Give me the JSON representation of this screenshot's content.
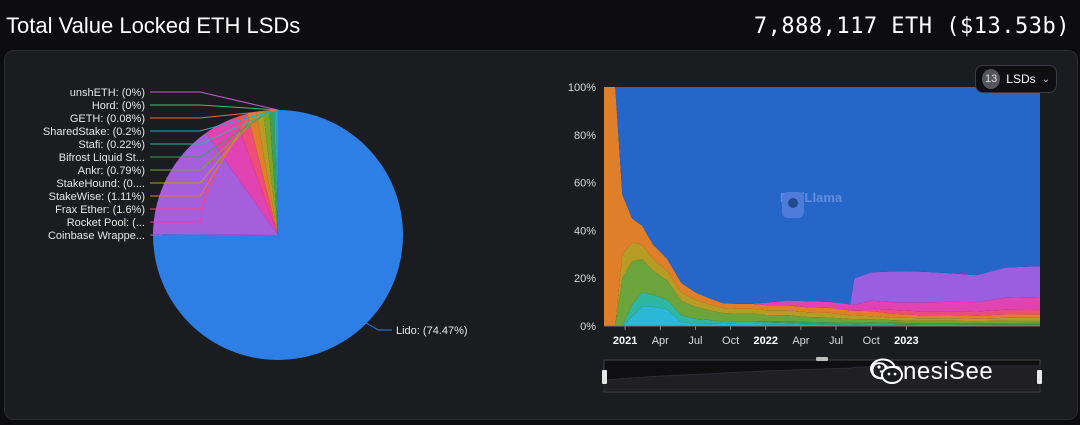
{
  "header": {
    "title": "Total Value Locked ETH LSDs",
    "total": "7,888,117 ETH ($13.53b)"
  },
  "lsd_selector": {
    "count": "13",
    "label": "LSDs"
  },
  "watermark": {
    "defillama": "DefiLlama",
    "wechat_name": "GenesiSee"
  },
  "colors": {
    "background": "#0d0d0f",
    "panel": "#1b1c20",
    "lido": "#2678e0"
  },
  "chart_data": [
    {
      "type": "pie",
      "title": "",
      "slices": [
        {
          "label": "Lido: (74.47%)",
          "value": 74.47,
          "color": "#2d7fe6"
        },
        {
          "label": "Coinbase Wrappe...",
          "value": 15.0,
          "color": "#a55edc"
        },
        {
          "label": "Rocket Pool: (...",
          "value": 4.2,
          "color": "#e243b3"
        },
        {
          "label": "Frax Ether: (1.6%)",
          "value": 1.6,
          "color": "#ef4c79"
        },
        {
          "label": "StakeWise: (1.11%)",
          "value": 1.11,
          "color": "#e07f2a"
        },
        {
          "label": "StakeHound: (0....",
          "value": 0.9,
          "color": "#b69b24"
        },
        {
          "label": "Ankr: (0.79%)",
          "value": 0.79,
          "color": "#7aa52d"
        },
        {
          "label": "Bifrost Liquid St...",
          "value": 0.6,
          "color": "#3c9e59"
        },
        {
          "label": "Stafi: (0.22%)",
          "value": 0.22,
          "color": "#2fb6a0"
        },
        {
          "label": "SharedStake: (0.2%)",
          "value": 0.2,
          "color": "#23a8cf"
        },
        {
          "label": "GETH: (0.08%)",
          "value": 0.08,
          "color": "#e86a3b"
        },
        {
          "label": "Hord: (0%)",
          "value": 0.0,
          "color": "#38c56b"
        },
        {
          "label": "unshETH: (0%)",
          "value": 0.0,
          "color": "#c85bd6"
        }
      ]
    },
    {
      "type": "area",
      "stacked": true,
      "percent": true,
      "ylabel": "",
      "xlabel": "",
      "ylim": [
        0,
        100
      ],
      "xlim": [
        2020.85,
        2023.95
      ],
      "yticks": [
        "0%",
        "20%",
        "40%",
        "60%",
        "80%",
        "100%"
      ],
      "xticks": [
        {
          "label": "2021",
          "x": 2021.0,
          "bold": true
        },
        {
          "label": "Apr",
          "x": 2021.25,
          "bold": false
        },
        {
          "label": "Jul",
          "x": 2021.5,
          "bold": false
        },
        {
          "label": "Oct",
          "x": 2021.75,
          "bold": false
        },
        {
          "label": "2022",
          "x": 2022.0,
          "bold": true
        },
        {
          "label": "Apr",
          "x": 2022.25,
          "bold": false
        },
        {
          "label": "Jul",
          "x": 2022.5,
          "bold": false
        },
        {
          "label": "Oct",
          "x": 2022.75,
          "bold": false
        },
        {
          "label": "2023",
          "x": 2023.0,
          "bold": true
        }
      ],
      "x": [
        2020.85,
        2020.93,
        2020.98,
        2021.05,
        2021.12,
        2021.2,
        2021.3,
        2021.4,
        2021.5,
        2021.6,
        2021.7,
        2021.8,
        2021.9,
        2022.0,
        2022.15,
        2022.3,
        2022.45,
        2022.6,
        2022.63,
        2022.75,
        2022.9,
        2023.1,
        2023.3,
        2023.5,
        2023.7,
        2023.95
      ],
      "series": [
        {
          "name": "Lido",
          "color": "#2766c9",
          "values": [
            0,
            0,
            45,
            55,
            58,
            66,
            72,
            82,
            86,
            88,
            89,
            88,
            88,
            88,
            88,
            88.5,
            89,
            89.5,
            80,
            72,
            72,
            72,
            71,
            70,
            60,
            58
          ]
        },
        {
          "name": "Coinbase Wrapped",
          "color": "#9a5ee0",
          "values": [
            0,
            0,
            0,
            0,
            0,
            0,
            0,
            0,
            0,
            0,
            0,
            0,
            0,
            0,
            0,
            0,
            0,
            0,
            11,
            11,
            12,
            12,
            11,
            10,
            10,
            10
          ]
        },
        {
          "name": "Rocket Pool",
          "color": "#e243b3",
          "values": [
            0,
            0,
            0,
            0,
            0,
            0,
            0,
            0,
            0,
            0,
            0,
            0,
            0,
            1,
            2,
            2.5,
            2.5,
            2.5,
            2.5,
            3,
            3,
            3.5,
            3.5,
            3.5,
            4,
            4
          ]
        },
        {
          "name": "Frax Ether",
          "color": "#ef4c79",
          "values": [
            0,
            0,
            0,
            0,
            0,
            0,
            0,
            0,
            0,
            0,
            0,
            0,
            0,
            0,
            0,
            0,
            0,
            0,
            0,
            1,
            1.5,
            1.5,
            1.5,
            1.6,
            1.6,
            1.6
          ]
        },
        {
          "name": "StakeWise",
          "color": "#e07f2a",
          "values": [
            100,
            100,
            25,
            10,
            8,
            6,
            5,
            4,
            3,
            2.5,
            2,
            2,
            2,
            2,
            2,
            2,
            2,
            2,
            2,
            2,
            1.5,
            1.2,
            1.2,
            1.1,
            1.1,
            1.1
          ]
        },
        {
          "name": "StakeHound",
          "color": "#b69b24",
          "values": [
            0,
            0,
            10,
            8,
            6,
            5,
            4,
            3.5,
            3,
            2.5,
            2,
            2,
            2,
            2,
            2,
            2,
            2,
            1.5,
            1.5,
            1.2,
            1,
            1,
            1,
            0.9,
            0.9,
            0.9
          ]
        },
        {
          "name": "Ankr",
          "color": "#6aa43a",
          "values": [
            0,
            0,
            20,
            18,
            14,
            10,
            8,
            6,
            5,
            4,
            3.5,
            3,
            3,
            2.5,
            2.5,
            2,
            2,
            1.5,
            1.5,
            1.2,
            1,
            1,
            1,
            0.8,
            0.8,
            0.8
          ]
        },
        {
          "name": "Bifrost Liquid Staking",
          "color": "#3c9e59",
          "values": [
            0,
            0,
            0,
            0,
            0,
            0,
            0,
            0,
            0,
            0,
            0,
            0,
            0,
            0.5,
            0.8,
            0.8,
            0.8,
            0.8,
            0.8,
            0.8,
            0.7,
            0.6,
            0.6,
            0.6,
            0.6,
            0.6
          ]
        },
        {
          "name": "Stafi",
          "color": "#2fb6a0",
          "values": [
            0,
            0,
            0,
            5,
            6,
            5,
            4,
            3,
            2,
            1.5,
            1,
            1,
            1,
            0.8,
            0.5,
            0.4,
            0.3,
            0.3,
            0.3,
            0.3,
            0.3,
            0.2,
            0.2,
            0.2,
            0.2,
            0.2
          ]
        },
        {
          "name": "SharedStake",
          "color": "#2ab8d6",
          "values": [
            0,
            0,
            0,
            4,
            8,
            8,
            7,
            1.5,
            1,
            1,
            0.8,
            1,
            1,
            0.7,
            0.7,
            0.5,
            0.4,
            0.3,
            0.3,
            0.3,
            0.3,
            0.2,
            0.2,
            0.2,
            0.2,
            0.2
          ]
        }
      ]
    }
  ]
}
